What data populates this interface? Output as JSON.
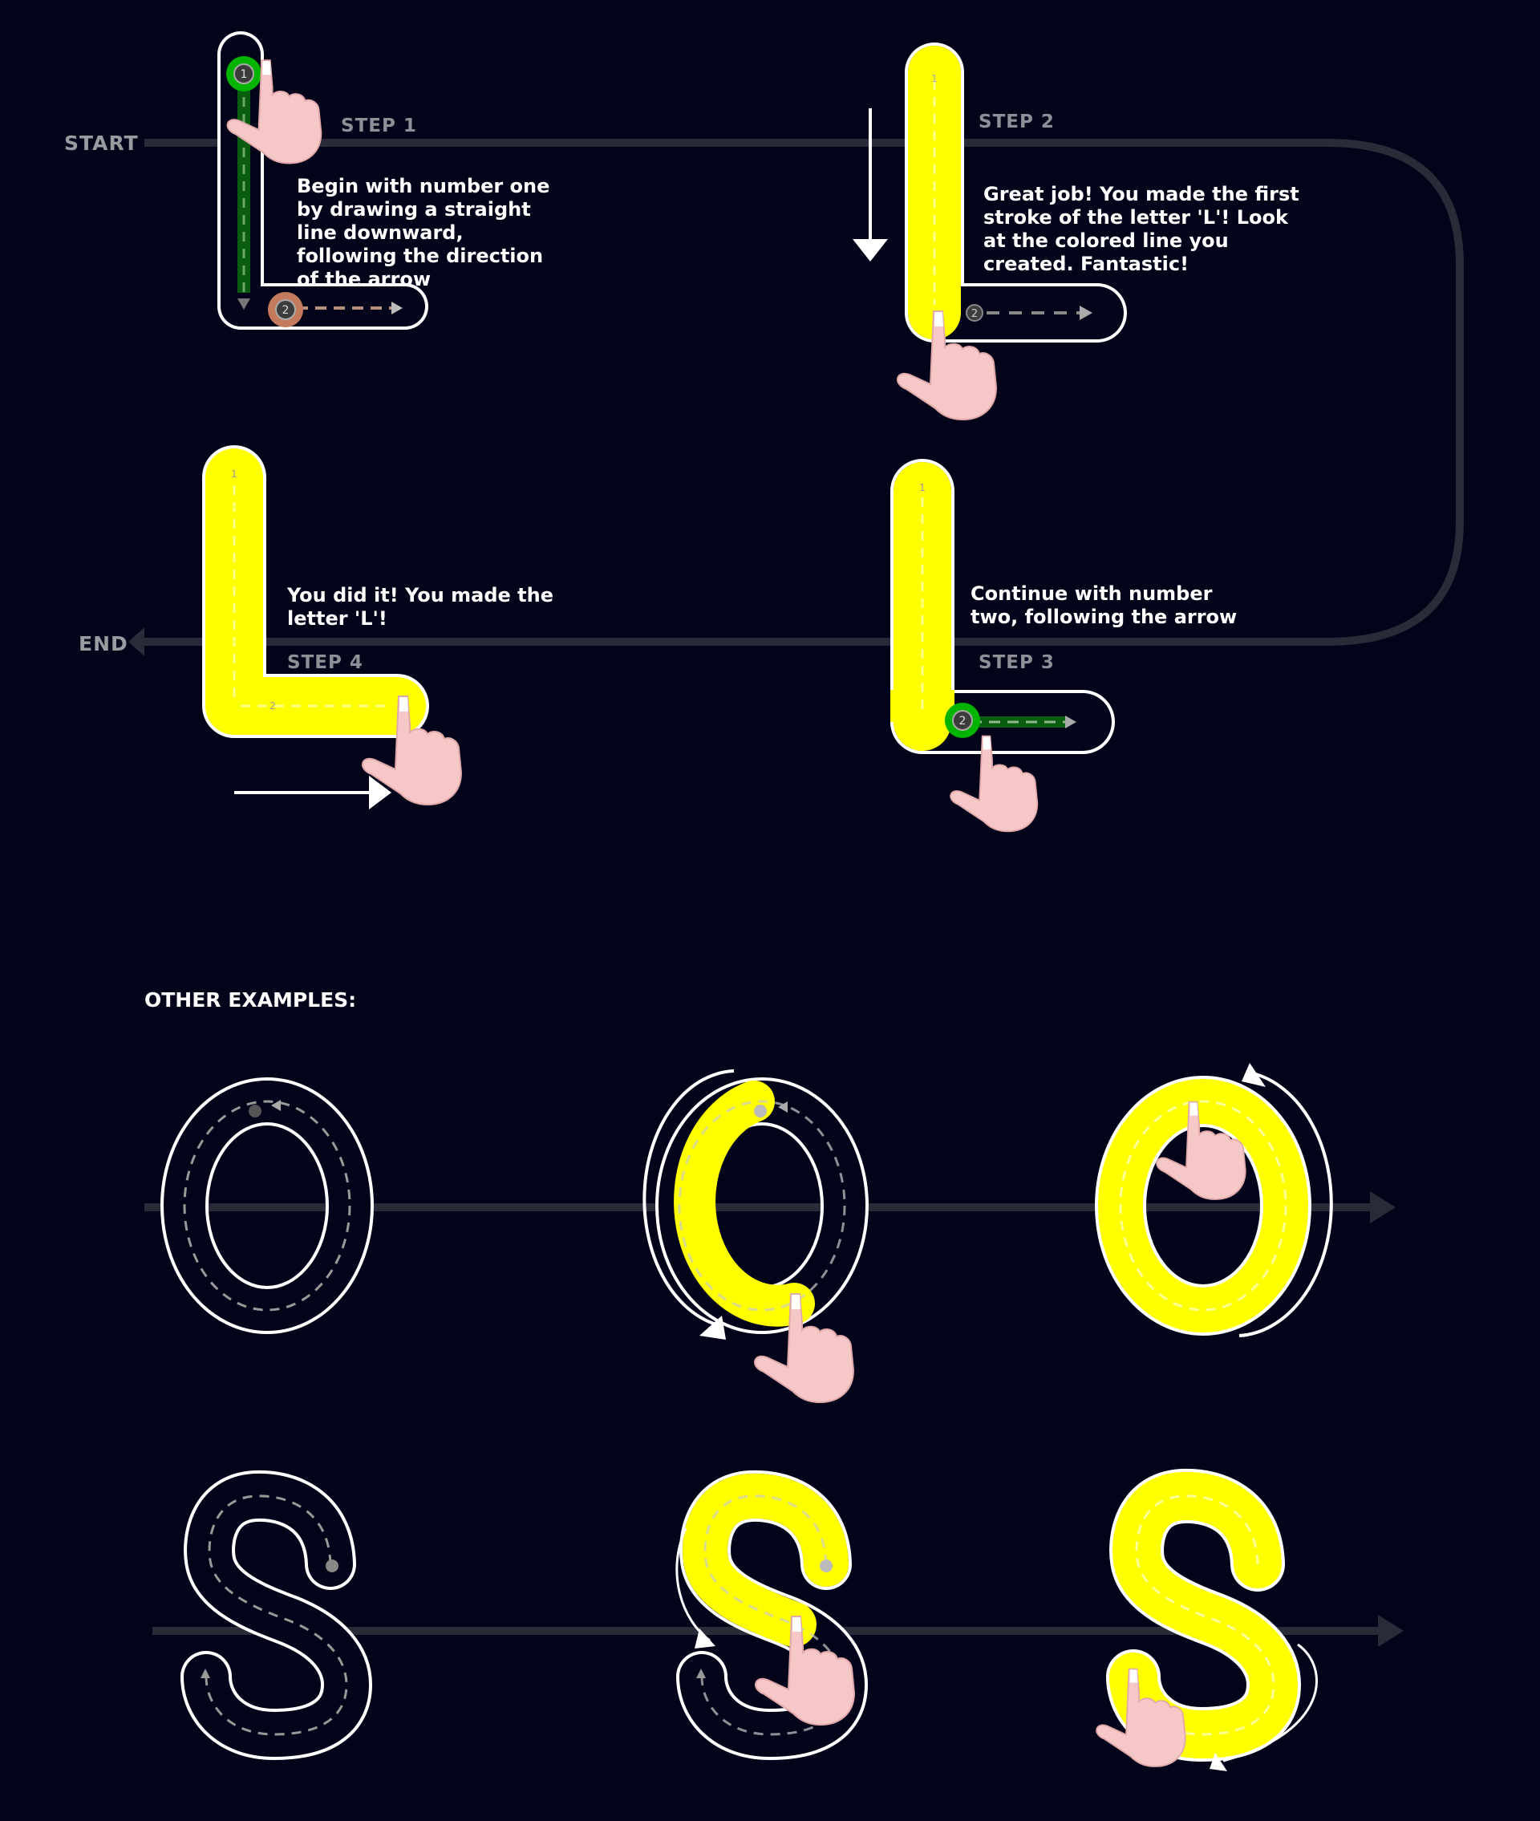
{
  "flow": {
    "start_label": "START",
    "end_label": "END"
  },
  "steps": [
    {
      "label": "STEP 1",
      "text": "Begin with number one by drawing a straight line downward, following the direction of the arrow"
    },
    {
      "label": "STEP 2",
      "text": "Great job! You made the first stroke of the letter 'L'! Look at the colored line you created. Fantastic!"
    },
    {
      "label": "STEP 3",
      "text": "Continue with number two, following the arrow"
    },
    {
      "label": "STEP 4",
      "text": "You did it! You made the letter 'L'!"
    }
  ],
  "stroke_numbers": [
    "1",
    "2"
  ],
  "examples": {
    "heading": "OTHER EXAMPLES:",
    "letters": [
      "O",
      "S"
    ]
  },
  "colors": {
    "background": "#03041a",
    "fill": "#ffff00",
    "outline": "#ffffff",
    "active_marker": "#00b400",
    "start_marker": "#c47a5c",
    "path_line": "#2a2b38",
    "hand": "#f5c7c6"
  },
  "icons": [
    "hand-pointer-icon",
    "arrow-down-icon",
    "arrow-right-icon",
    "arrow-left-icon",
    "circular-arrow-icon"
  ]
}
